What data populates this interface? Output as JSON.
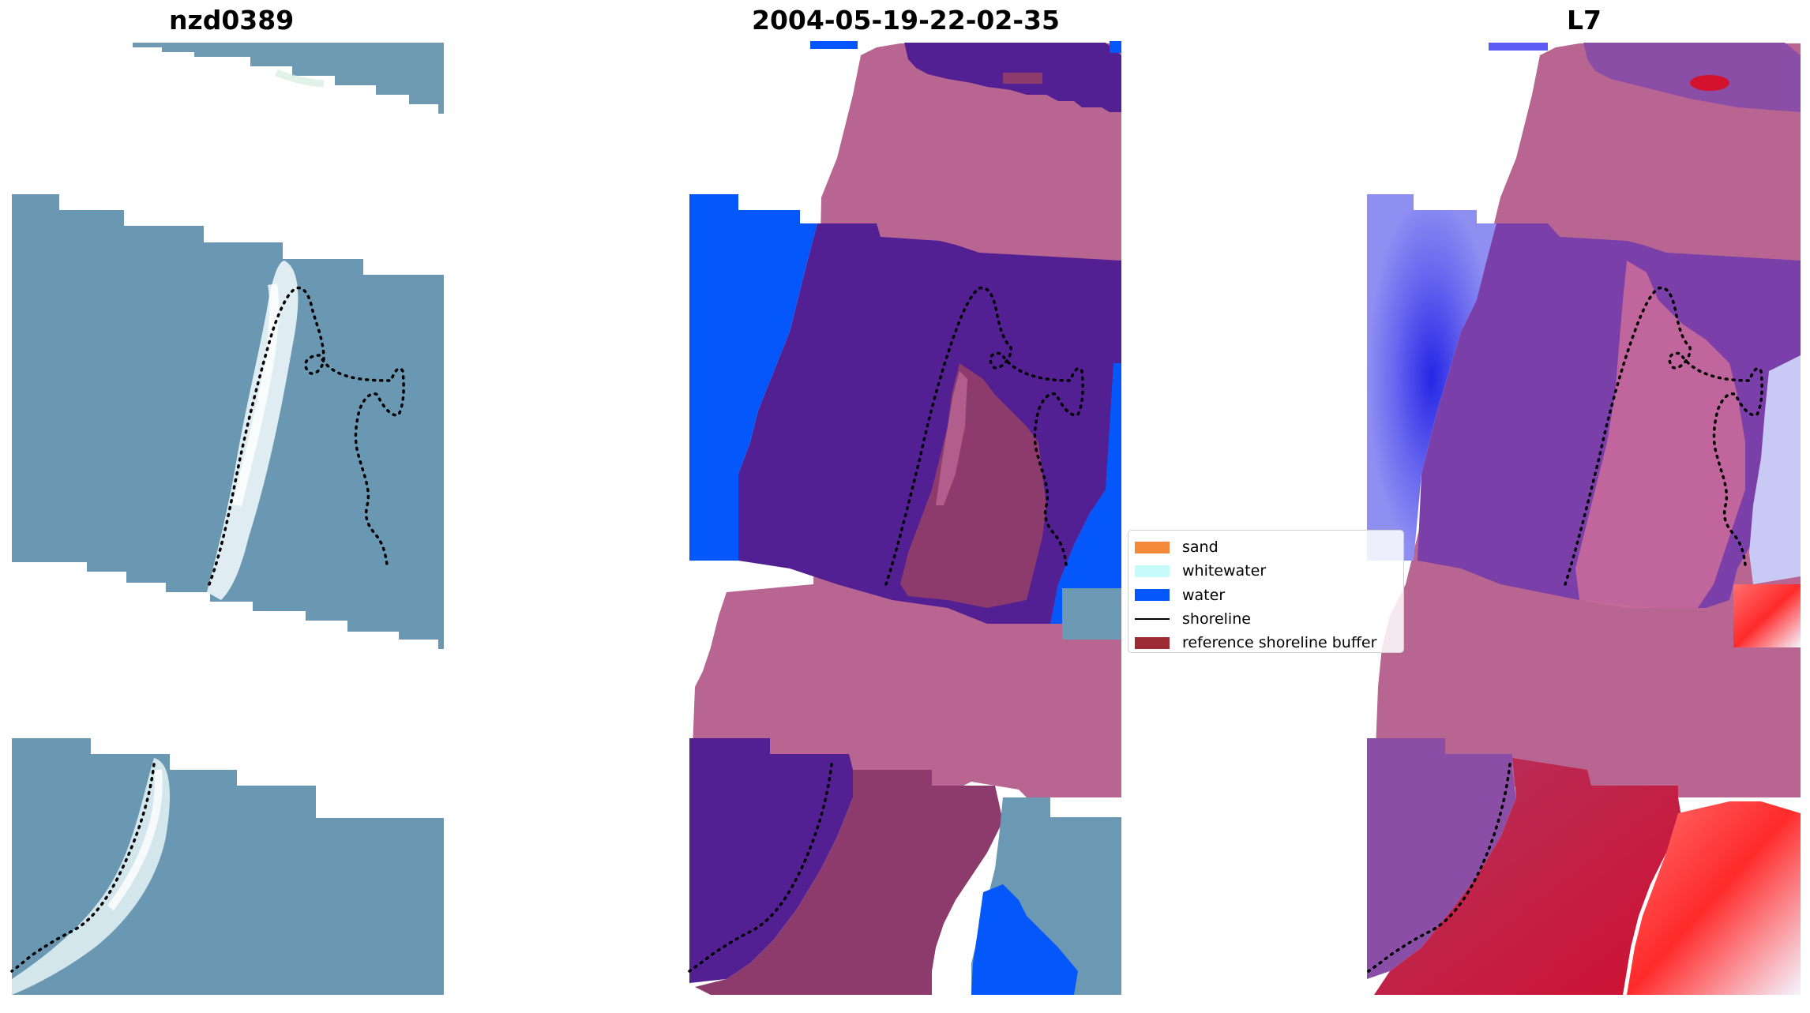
{
  "panels": [
    {
      "title": "nzd0389"
    },
    {
      "title": "2004-05-19-22-02-35"
    },
    {
      "title": "L7"
    }
  ],
  "legend": {
    "items": [
      {
        "label": "sand",
        "color": "#f5893a",
        "kind": "patch"
      },
      {
        "label": "whitewater",
        "color": "#c6fbfb",
        "kind": "patch"
      },
      {
        "label": "water",
        "color": "#0457fa",
        "kind": "patch"
      },
      {
        "label": "shoreline",
        "color": "#000000",
        "kind": "line"
      },
      {
        "label": "reference shoreline buffer",
        "color": "#9b2a34",
        "kind": "patch"
      }
    ]
  },
  "colors": {
    "rgb_land": "#6b9ab5",
    "rgb_sea": "#6b98b2",
    "rgb_beach": "#dfeef2",
    "class_land": "#b96592",
    "class_dark": "#522092",
    "class_water": "#0457fa",
    "class_buffer": "#8d3a6c",
    "mndwi_blue": "#3b3cf0",
    "mndwi_purple": "#7a3fa8",
    "mndwi_red": "#d8233c",
    "mndwi_pink": "#b96592"
  }
}
